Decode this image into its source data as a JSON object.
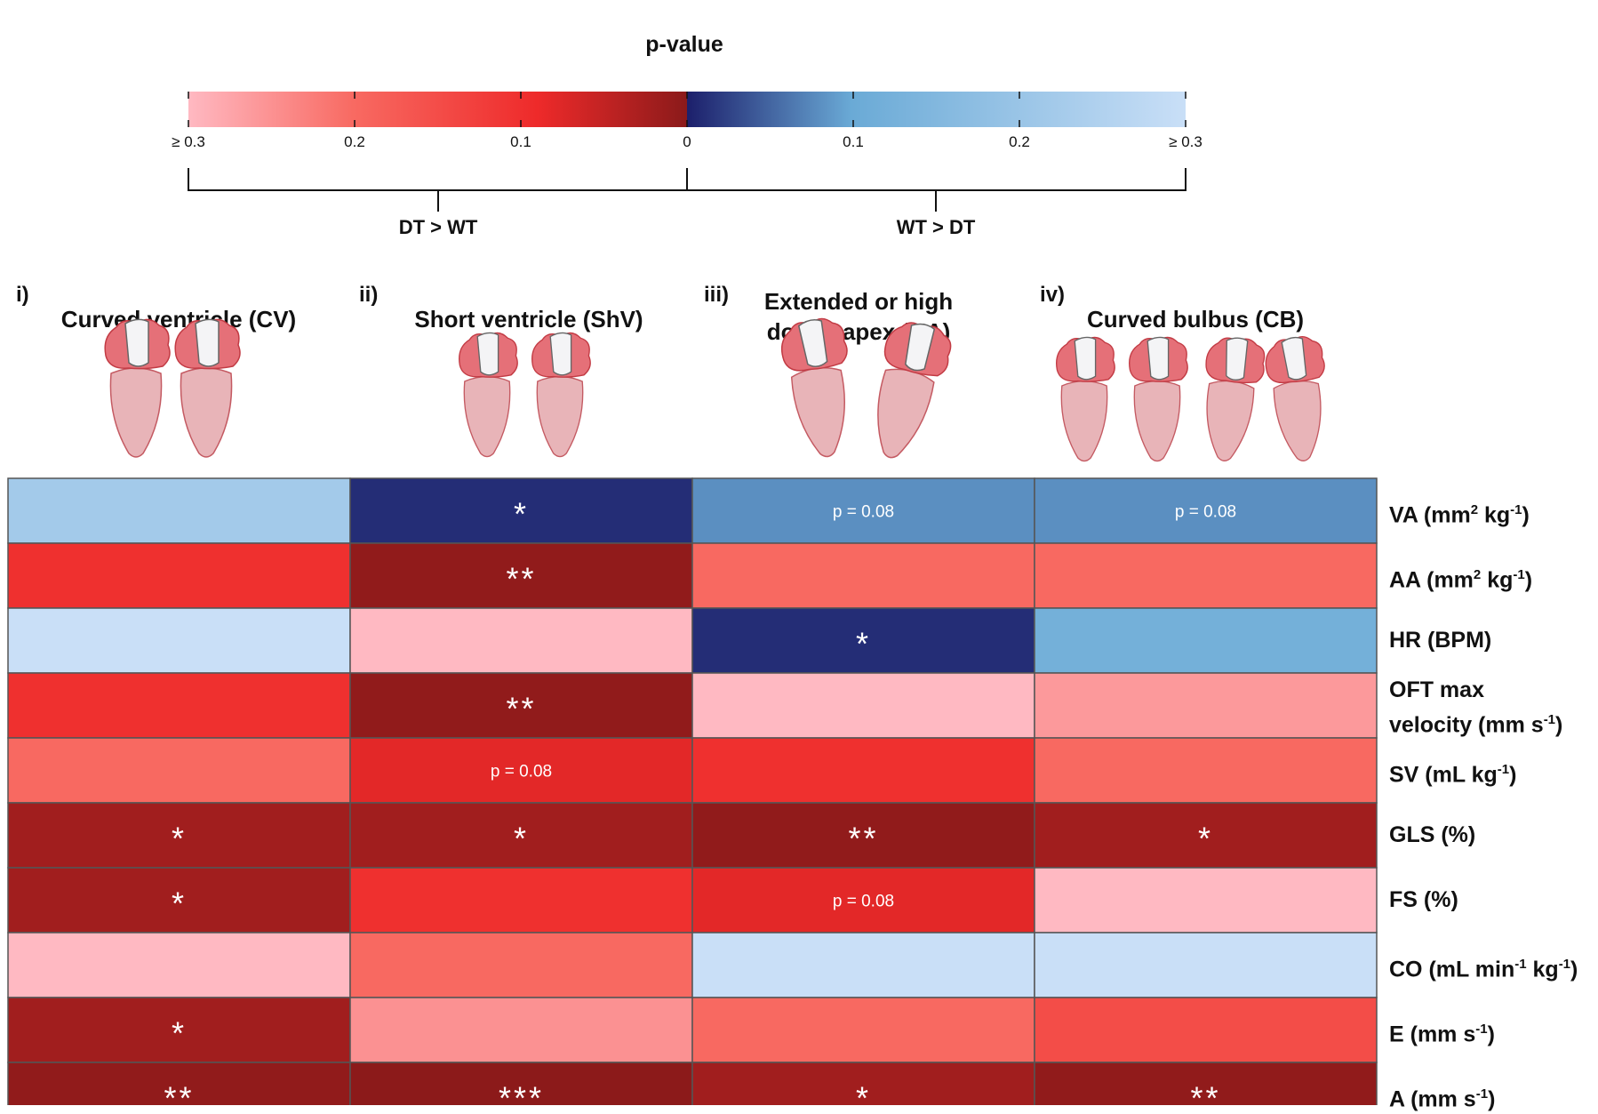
{
  "legend": {
    "title": "p-value",
    "ticks_left": [
      "≥ 0.3",
      "0.2",
      "0.1",
      "0"
    ],
    "ticks_right": [
      "0.1",
      "0.2",
      "≥ 0.3"
    ],
    "left_direction": "DT > WT",
    "right_direction": "WT > DT",
    "colors": {
      "red_light": "#ffb9c2",
      "red_mid": "#f86a62",
      "red_strong": "#ee2a2a",
      "red_dark": "#8b1a1a",
      "blue_dark": "#1c1f6b",
      "blue_mid": "#6aaad6",
      "blue_light": "#c9dff7"
    }
  },
  "groups": [
    {
      "roman": "i)",
      "title_lines": [
        "Curved ventricle (CV)"
      ]
    },
    {
      "roman": "ii)",
      "title_lines": [
        "Short ventricle (ShV)"
      ]
    },
    {
      "roman": "iii)",
      "title_lines": [
        "Extended  or high",
        "dorsal apex (HA)"
      ]
    },
    {
      "roman": "iv)",
      "title_lines": [
        "Curved bulbus (CB)"
      ]
    }
  ],
  "rows": [
    {
      "label_html": "VA (mm<sup>2</sup> kg<sup>-1</sup>)"
    },
    {
      "label_html": "AA (mm<sup>2</sup> kg<sup>-1</sup>)"
    },
    {
      "label_html": "HR (BPM)"
    },
    {
      "label_html": "OFT max<br>velocity (mm s<sup>-1</sup>)"
    },
    {
      "label_html": "SV (mL kg<sup>-1</sup>)"
    },
    {
      "label_html": "GLS (%)"
    },
    {
      "label_html": "FS (%)"
    },
    {
      "label_html": "CO (mL min<sup>-1</sup> kg<sup>-1</sup>)"
    },
    {
      "label_html": "E (mm s<sup>-1</sup>)"
    },
    {
      "label_html": "A (mm s<sup>-1</sup>)"
    }
  ],
  "chart_data": {
    "type": "heatmap",
    "title": "p-value",
    "columns": [
      "Curved ventricle (CV)",
      "Short ventricle (ShV)",
      "Extended  or high dorsal apex (HA)",
      "Curved bulbus (CB)"
    ],
    "rows": [
      "VA (mm2 kg-1)",
      "AA (mm2 kg-1)",
      "HR (BPM)",
      "OFT max velocity (mm s-1)",
      "SV (mL kg-1)",
      "GLS (%)",
      "FS (%)",
      "CO (mL min-1 kg-1)",
      "E (mm s-1)",
      "A (mm s-1)"
    ],
    "direction": [
      [
        "WT > DT",
        "WT > DT",
        "WT > DT",
        "WT > DT"
      ],
      [
        "DT > WT",
        "DT > WT",
        "DT > WT",
        "DT > WT"
      ],
      [
        "WT > DT",
        "DT > WT",
        "WT > DT",
        "WT > DT"
      ],
      [
        "DT > WT",
        "DT > WT",
        "DT > WT",
        "DT > WT"
      ],
      [
        "DT > WT",
        "DT > WT",
        "DT > WT",
        "DT > WT"
      ],
      [
        "DT > WT",
        "DT > WT",
        "DT > WT",
        "DT > WT"
      ],
      [
        "DT > WT",
        "DT > WT",
        "DT > WT",
        "DT > WT"
      ],
      [
        "DT > WT",
        "DT > WT",
        "WT > DT",
        "WT > DT"
      ],
      [
        "DT > WT",
        "DT > WT",
        "DT > WT",
        "DT > WT"
      ],
      [
        "DT > WT",
        "DT > WT",
        "DT > WT",
        "DT > WT"
      ]
    ],
    "p_values": [
      [
        0.22,
        0.01,
        0.08,
        0.08
      ],
      [
        0.1,
        0.005,
        0.2,
        0.2
      ],
      [
        0.3,
        0.3,
        0.01,
        0.12
      ],
      [
        0.1,
        0.005,
        0.3,
        0.26
      ],
      [
        0.2,
        0.08,
        0.1,
        0.2
      ],
      [
        0.02,
        0.02,
        0.005,
        0.02
      ],
      [
        0.02,
        0.1,
        0.08,
        0.3
      ],
      [
        0.3,
        0.2,
        0.3,
        0.3
      ],
      [
        0.02,
        0.25,
        0.2,
        0.15
      ],
      [
        0.005,
        0.0005,
        0.02,
        0.005
      ]
    ],
    "annotations": [
      [
        "",
        "*",
        "p = 0.08",
        "p = 0.08"
      ],
      [
        "",
        "**",
        "",
        ""
      ],
      [
        "",
        "",
        "*",
        ""
      ],
      [
        "",
        "**",
        "",
        ""
      ],
      [
        "",
        "p = 0.08",
        "",
        ""
      ],
      [
        "*",
        "*",
        "**",
        "*"
      ],
      [
        "*",
        "",
        "p = 0.08",
        ""
      ],
      [
        "",
        "",
        "",
        ""
      ],
      [
        "*",
        "",
        "",
        ""
      ],
      [
        "**",
        "***",
        "*",
        "**"
      ]
    ],
    "scale": {
      "min": 0,
      "max": 0.3,
      "left_label": "DT > WT",
      "right_label": "WT > DT"
    }
  }
}
